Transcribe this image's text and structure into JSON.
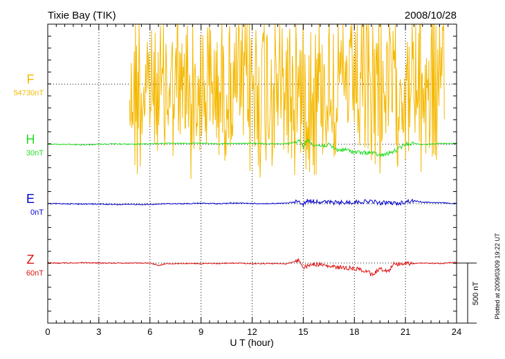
{
  "chart_data": {
    "type": "line",
    "title": "Tixie Bay (TIK)",
    "date": "2008/10/28",
    "xlabel": "U T (hour)",
    "xlim": [
      0,
      24
    ],
    "xticks": [
      "0",
      "3",
      "6",
      "9",
      "12",
      "15",
      "18",
      "21",
      "24"
    ],
    "grid": true,
    "scale_bar": {
      "label": "500 nT",
      "value_nT": 500
    },
    "plotted_note": "Plotted at 2009/03/09 19:22 UT",
    "series": [
      {
        "name": "F",
        "baseline_label": "54730nT",
        "color": "#f5b800",
        "baseline_nT": 0,
        "quiet_until": 4.8,
        "active_until": 23.3,
        "amplitude_nT": 700,
        "bursts": [
          [
            5.0,
            5.8
          ],
          [
            8.0,
            8.6
          ],
          [
            11.8,
            14.6
          ],
          [
            15.2,
            16.0
          ],
          [
            18.2,
            19.6
          ],
          [
            21.3,
            23.0
          ]
        ]
      },
      {
        "name": "H",
        "baseline_label": "30nT",
        "color": "#22dd22",
        "values": [
          [
            0,
            0
          ],
          [
            1,
            0
          ],
          [
            2,
            -3
          ],
          [
            3,
            0
          ],
          [
            4,
            2
          ],
          [
            5,
            0
          ],
          [
            6,
            3
          ],
          [
            7,
            5
          ],
          [
            8,
            4
          ],
          [
            9,
            6
          ],
          [
            10,
            3
          ],
          [
            11,
            4
          ],
          [
            12,
            5
          ],
          [
            13,
            3
          ],
          [
            14,
            4
          ],
          [
            14.8,
            14
          ],
          [
            15,
            -12
          ],
          [
            15.2,
            22
          ],
          [
            15.6,
            0
          ],
          [
            16,
            -8
          ],
          [
            16.5,
            -4
          ],
          [
            17,
            -30
          ],
          [
            17.5,
            -28
          ],
          [
            18,
            -40
          ],
          [
            18.5,
            -45
          ],
          [
            19,
            -42
          ],
          [
            19.5,
            -60
          ],
          [
            20,
            -48
          ],
          [
            20.5,
            -30
          ],
          [
            21,
            2
          ],
          [
            21.5,
            5
          ],
          [
            22,
            -2
          ],
          [
            23,
            4
          ],
          [
            24,
            4
          ]
        ]
      },
      {
        "name": "E",
        "baseline_label": "0nT",
        "color": "#0000cc",
        "values": [
          [
            0,
            0
          ],
          [
            1,
            0
          ],
          [
            2,
            -2
          ],
          [
            3,
            -2
          ],
          [
            4,
            -5
          ],
          [
            5,
            -4
          ],
          [
            6,
            -4
          ],
          [
            6.5,
            -2
          ],
          [
            7,
            0
          ],
          [
            8,
            0
          ],
          [
            9,
            2
          ],
          [
            10,
            0
          ],
          [
            11,
            3
          ],
          [
            12,
            1
          ],
          [
            13,
            0
          ],
          [
            14,
            2
          ],
          [
            14.8,
            12
          ],
          [
            15,
            -8
          ],
          [
            15.2,
            15
          ],
          [
            16,
            10
          ],
          [
            16.5,
            8
          ],
          [
            17,
            5
          ],
          [
            18,
            8
          ],
          [
            19,
            12
          ],
          [
            19.5,
            3
          ],
          [
            20,
            6
          ],
          [
            20.5,
            0
          ],
          [
            21,
            10
          ],
          [
            21.5,
            15
          ],
          [
            22,
            8
          ],
          [
            23,
            5
          ],
          [
            24,
            0
          ]
        ]
      },
      {
        "name": "Z",
        "baseline_label": "60nT",
        "color": "#dd1111",
        "values": [
          [
            0,
            0
          ],
          [
            1,
            0
          ],
          [
            2,
            2
          ],
          [
            3,
            0
          ],
          [
            4,
            0
          ],
          [
            5,
            0
          ],
          [
            6,
            0
          ],
          [
            6.5,
            -12
          ],
          [
            7,
            -3
          ],
          [
            8,
            -2
          ],
          [
            9,
            -3
          ],
          [
            10,
            -2
          ],
          [
            11,
            0
          ],
          [
            12,
            -3
          ],
          [
            13,
            -2
          ],
          [
            14,
            -4
          ],
          [
            14.8,
            15
          ],
          [
            15,
            -25
          ],
          [
            15.5,
            -5
          ],
          [
            16,
            -8
          ],
          [
            16.5,
            -18
          ],
          [
            17,
            -22
          ],
          [
            18,
            -28
          ],
          [
            18.8,
            -42
          ],
          [
            19,
            -62
          ],
          [
            19.5,
            -30
          ],
          [
            20,
            -40
          ],
          [
            20.3,
            -5
          ],
          [
            21,
            -2
          ],
          [
            22,
            0
          ],
          [
            23,
            -3
          ],
          [
            24,
            4
          ]
        ]
      }
    ]
  }
}
